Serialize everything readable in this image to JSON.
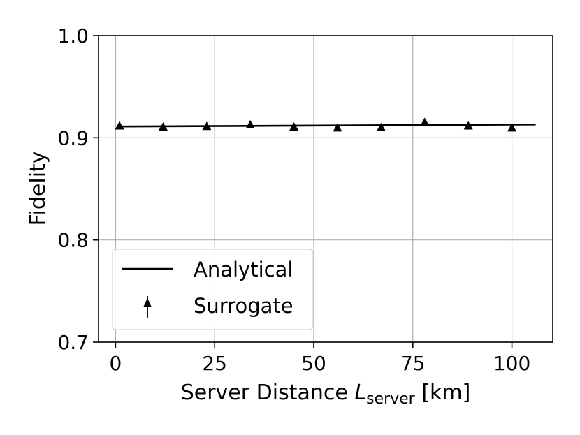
{
  "chart_data": {
    "type": "line",
    "title": "",
    "xlabel": {
      "main": "Server Distance ",
      "var": "L",
      "sub": "server",
      "unit": " [km]"
    },
    "ylabel": "Fidelity",
    "xlim": [
      -4.3,
      110.3
    ],
    "ylim": [
      0.7,
      1.0
    ],
    "x_ticks": [
      0,
      25,
      50,
      75,
      100
    ],
    "x_tick_labels": [
      "0",
      "25",
      "50",
      "75",
      "100"
    ],
    "y_ticks": [
      0.7,
      0.8,
      0.9,
      1.0
    ],
    "y_tick_labels": [
      "0.7",
      "0.8",
      "0.9",
      "1.0"
    ],
    "grid": true,
    "legend_position": "lower-left",
    "series": [
      {
        "name": "Analytical",
        "style": "line",
        "color": "#000000",
        "x": [
          1,
          106
        ],
        "y": [
          0.911,
          0.913
        ]
      },
      {
        "name": "Surrogate",
        "style": "triangle-markers",
        "color": "#000000",
        "x": [
          1,
          12,
          23,
          34,
          45,
          56,
          67,
          78,
          89,
          100
        ],
        "y": [
          0.9115,
          0.9105,
          0.911,
          0.9125,
          0.9105,
          0.9095,
          0.91,
          0.915,
          0.9115,
          0.9095
        ]
      }
    ]
  }
}
